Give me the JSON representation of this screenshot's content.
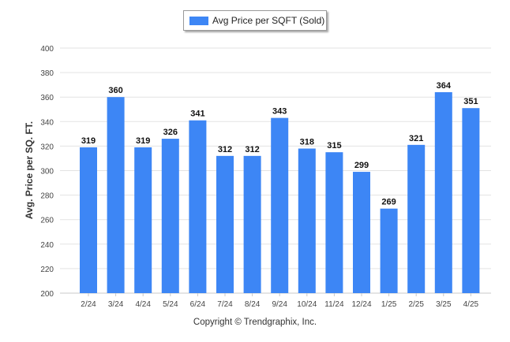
{
  "legend": {
    "label": "Avg Price per SQFT (Sold)",
    "color": "#3d86f5"
  },
  "footer": {
    "copyright": "Copyright © Trendgraphix, Inc."
  },
  "chart_data": {
    "type": "bar",
    "categories": [
      "2/24",
      "3/24",
      "4/24",
      "5/24",
      "6/24",
      "7/24",
      "8/24",
      "9/24",
      "10/24",
      "11/24",
      "12/24",
      "1/25",
      "2/25",
      "3/25",
      "4/25"
    ],
    "series": [
      {
        "name": "Avg Price per SQFT (Sold)",
        "values": [
          319,
          360,
          319,
          326,
          341,
          312,
          312,
          343,
          318,
          315,
          299,
          269,
          321,
          364,
          351
        ],
        "color": "#3d86f5"
      }
    ],
    "ylabel": "Avg. Price per SQ. FT.",
    "xlabel": "",
    "ylim": [
      200,
      400
    ],
    "yticks": [
      200,
      220,
      240,
      260,
      280,
      300,
      320,
      340,
      360,
      380,
      400
    ],
    "grid": true,
    "legend_position": "top-center",
    "data_labels": true
  }
}
